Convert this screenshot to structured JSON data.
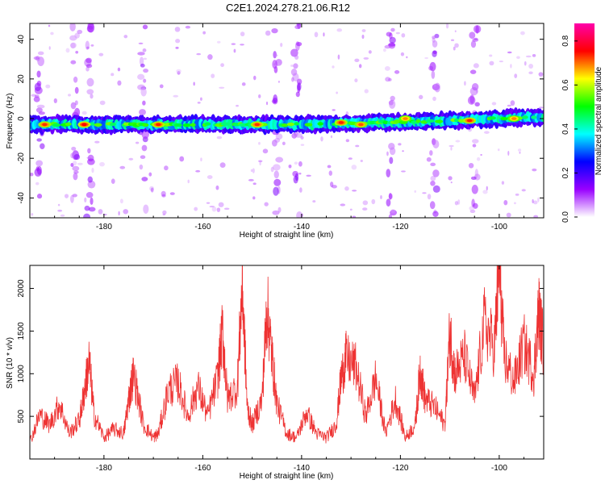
{
  "title": "C2E1.2024.278.21.06.R12",
  "colors": {
    "snr_line": "#ee3333",
    "spectrogram_background": "#ffffff",
    "axis": "#000000"
  },
  "chart_data": [
    {
      "type": "heatmap",
      "xlabel": "Height of straight line (km)",
      "ylabel": "Frequency (Hz)",
      "xlim": [
        -195,
        -91
      ],
      "ylim": [
        -50,
        48
      ],
      "x_ticks": [
        -180,
        -160,
        -140,
        -120,
        -100
      ],
      "y_ticks": [
        -40,
        -20,
        0,
        20,
        40
      ],
      "grid": false,
      "colorbar": {
        "label": "Normalized spectral amplitude",
        "range": [
          0,
          0.88
        ],
        "ticks": [
          0.0,
          0.2,
          0.4,
          0.6,
          0.8
        ],
        "colormap": [
          "#ffffff",
          "#9900ff",
          "#0000ff",
          "#00ffff",
          "#00ff00",
          "#ffff00",
          "#ff0000",
          "#ff00aa"
        ]
      },
      "band": {
        "center_frequency_hz": [
          [
            -195,
            -3
          ],
          [
            -180,
            -3
          ],
          [
            -160,
            -3
          ],
          [
            -140,
            -3
          ],
          [
            -125,
            -2
          ],
          [
            -110,
            -1
          ],
          [
            -91,
            1
          ]
        ],
        "half_width_hz": 3,
        "peaks": [
          {
            "x": -192,
            "y": -3,
            "amp": 0.85
          },
          {
            "x": -184,
            "y": -3,
            "amp": 0.88
          },
          {
            "x": -169,
            "y": -3,
            "amp": 0.86
          },
          {
            "x": -149,
            "y": -3,
            "amp": 0.85
          },
          {
            "x": -132,
            "y": -2,
            "amp": 0.86
          },
          {
            "x": -128,
            "y": -3,
            "amp": 0.83
          },
          {
            "x": -119,
            "y": 0,
            "amp": 0.8
          },
          {
            "x": -106,
            "y": -1,
            "amp": 0.86
          },
          {
            "x": -97,
            "y": 0,
            "amp": 0.8
          }
        ]
      },
      "vertical_streaks_x": [
        -193,
        -186,
        -183,
        -172,
        -145,
        -141,
        -122,
        -113,
        -105
      ]
    },
    {
      "type": "line",
      "xlabel": "Height of straight line (km)",
      "ylabel": "SNR (10 * v/v)",
      "xlim": [
        -195,
        -91
      ],
      "ylim": [
        0,
        2270
      ],
      "x_ticks": [
        -180,
        -160,
        -140,
        -120,
        -100
      ],
      "y_ticks": [
        500,
        1000,
        1500,
        2000
      ],
      "grid": false,
      "series": [
        {
          "color": "#ee3333",
          "x": [
            -195,
            -193,
            -191,
            -189,
            -187,
            -185,
            -184,
            -183,
            -182,
            -180,
            -178,
            -176,
            -175,
            -174,
            -172,
            -170,
            -169,
            -167,
            -165,
            -163,
            -161,
            -159,
            -157,
            -156,
            -155,
            -153,
            -152,
            -151,
            -150,
            -148,
            -147,
            -146,
            -145,
            -143,
            -141,
            -139,
            -137,
            -135,
            -133,
            -132,
            -131,
            -129,
            -127,
            -125,
            -123,
            -121,
            -119,
            -117,
            -116,
            -115,
            -113,
            -111,
            -110,
            -109,
            -107,
            -105,
            -103,
            -101,
            -100,
            -99,
            -97,
            -95,
            -93,
            -92,
            -91
          ],
          "values": [
            200,
            520,
            400,
            650,
            300,
            450,
            780,
            1150,
            520,
            250,
            350,
            300,
            700,
            1000,
            400,
            250,
            300,
            800,
            900,
            500,
            850,
            500,
            950,
            1500,
            700,
            850,
            2070,
            600,
            400,
            700,
            1800,
            1200,
            650,
            300,
            250,
            550,
            300,
            250,
            400,
            950,
            1180,
            1070,
            500,
            950,
            300,
            700,
            250,
            400,
            1050,
            700,
            600,
            400,
            1500,
            1000,
            1200,
            700,
            1600,
            1300,
            2280,
            1200,
            900,
            1350,
            1000,
            1730,
            1300
          ]
        }
      ]
    }
  ]
}
